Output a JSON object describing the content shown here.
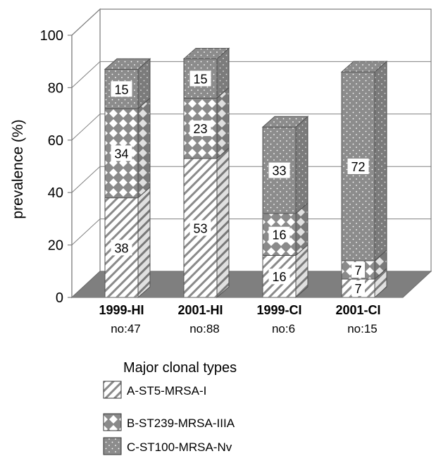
{
  "chart_data": {
    "type": "bar",
    "stacked": true,
    "three_d": true,
    "ylabel": "prevalence (%)",
    "ylim": [
      0,
      100
    ],
    "yticks": [
      "0",
      "20",
      "40",
      "60",
      "80",
      "100"
    ],
    "grid": true,
    "categories": [
      "1999-HI",
      "2001-HI",
      "1999-CI",
      "2001-CI"
    ],
    "counts": [
      "no:47",
      "no:88",
      "no:6",
      "no:15"
    ],
    "series": [
      {
        "name": "A-ST5-MRSA-I",
        "values": [
          38,
          53,
          16,
          7
        ],
        "labels": [
          "38",
          "53",
          "16",
          "7"
        ],
        "pattern": "diagonal-stripes"
      },
      {
        "name": "B-ST239-MRSA-IIIA",
        "values": [
          34,
          23,
          16,
          7
        ],
        "labels": [
          "34",
          "23",
          "16",
          "7"
        ],
        "pattern": "checker-diamonds"
      },
      {
        "name": "C-ST100-MRSA-Nv",
        "values": [
          15,
          15,
          33,
          72
        ],
        "labels": [
          "15",
          "15",
          "33",
          "72"
        ],
        "pattern": "grey-dots"
      }
    ],
    "legend": {
      "title": "Major clonal types",
      "position": "bottom"
    },
    "colors": {
      "wall": "#ffffff",
      "floor": "#7f7f7f",
      "dots_fill": "#8c8c8c",
      "stripe": "#888888",
      "frame": "#808080"
    }
  }
}
